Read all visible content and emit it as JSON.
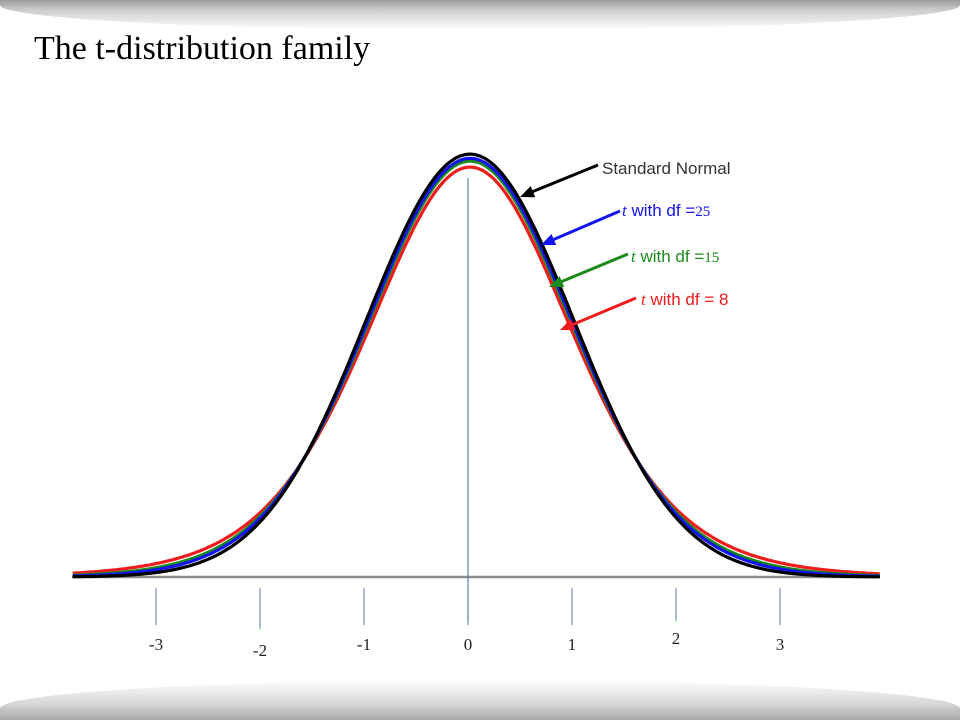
{
  "title": "The t-distribution family",
  "chart_data": {
    "type": "line",
    "title": "The t-distribution family",
    "xlim": [
      -4,
      4
    ],
    "ylim": [
      0,
      0.4
    ],
    "x_ticks": [
      "-3",
      "-2",
      "-1",
      "0",
      "1",
      "2",
      "3"
    ],
    "series": [
      {
        "name": "Standard Normal",
        "df": null,
        "color": "#000000",
        "label_parts": [
          "Standard Normal"
        ]
      },
      {
        "name": "t with df =25",
        "df": 25,
        "color": "#1414f0",
        "label_parts": [
          "t",
          " with df =",
          "25"
        ]
      },
      {
        "name": "t with df =15",
        "df": 15,
        "color": "#1a8a1a",
        "label_parts": [
          "t",
          " with df =",
          "15"
        ]
      },
      {
        "name": "t with df = 8",
        "df": 8,
        "color": "#ee1c1c",
        "label_parts": [
          "t",
          " with df = ",
          "8"
        ]
      }
    ]
  }
}
